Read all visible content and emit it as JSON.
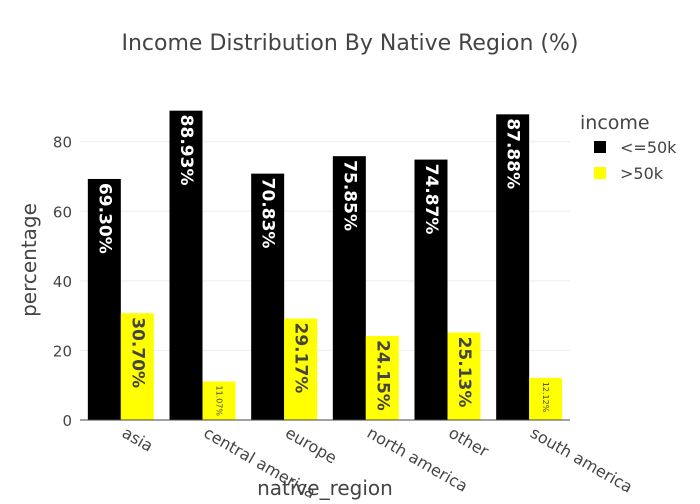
{
  "chart_data": {
    "type": "bar",
    "title": "Income Distribution By Native Region (%)",
    "xlabel": "native_region",
    "ylabel": "percentage",
    "categories": [
      "asia",
      "central america",
      "europe",
      "north america",
      "other",
      "south america"
    ],
    "series": [
      {
        "name": "<=50k",
        "color": "#000000",
        "values": [
          69.3,
          88.93,
          70.83,
          75.85,
          74.87,
          87.88
        ],
        "labels": [
          "69.30%",
          "88.93%",
          "70.83%",
          "75.85%",
          "74.87%",
          "87.88%"
        ]
      },
      {
        "name": ">50k",
        "color": "#ffff00",
        "values": [
          30.7,
          11.07,
          29.17,
          24.15,
          25.13,
          12.12
        ],
        "labels": [
          "30.70%",
          "11.07%",
          "29.17%",
          "24.15%",
          "25.13%",
          "12.12%"
        ]
      }
    ],
    "ylim": [
      0,
      92
    ],
    "yticks": [
      0,
      20,
      40,
      60,
      80
    ],
    "grid": true,
    "legend": {
      "title": "income",
      "position": "top-right"
    }
  }
}
